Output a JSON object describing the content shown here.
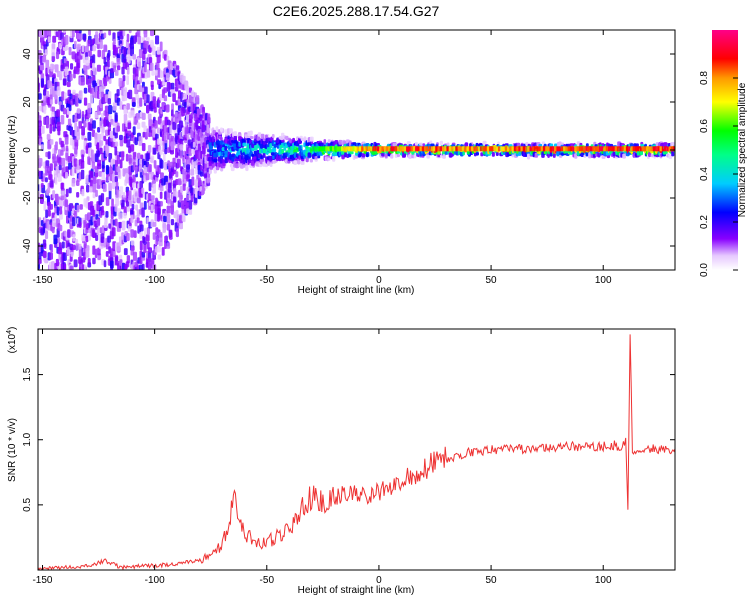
{
  "title": "C2E6.2025.288.17.54.G27",
  "colorbar": {
    "label": "Normalized spectral amplitude",
    "ticks": [
      "0.0",
      "0.2",
      "0.4",
      "0.6",
      "0.8"
    ],
    "tick_values": [
      0.0,
      0.2,
      0.4,
      0.6,
      0.8
    ],
    "range": [
      0,
      1
    ]
  },
  "chart_data": [
    {
      "type": "heatmap",
      "title": "C2E6.2025.288.17.54.G27",
      "xlabel": "Height of straight line (km)",
      "ylabel": "Frequency (Hz)",
      "xlim": [
        -152,
        132
      ],
      "ylim": [
        -50,
        50
      ],
      "x_ticks": [
        -150,
        -100,
        -50,
        0,
        50,
        100
      ],
      "x_tick_labels": [
        "-150",
        "-100",
        "-50",
        "0",
        "50",
        "100"
      ],
      "y_ticks": [
        -40,
        -20,
        0,
        20,
        40
      ],
      "y_tick_labels": [
        "-40",
        "-20",
        "0",
        "20",
        "40"
      ],
      "description_points": [
        {
          "x_km": -150,
          "freq_spread_hz": 50,
          "peak_amplitude": 0.2
        },
        {
          "x_km": -100,
          "freq_spread_hz": 50,
          "peak_amplitude": 0.2
        },
        {
          "x_km": -75,
          "freq_spread_hz": 12,
          "peak_amplitude": 0.35
        },
        {
          "x_km": -50,
          "freq_spread_hz": 8,
          "peak_amplitude": 0.45
        },
        {
          "x_km": -25,
          "freq_spread_hz": 5,
          "peak_amplitude": 0.6
        },
        {
          "x_km": 0,
          "freq_spread_hz": 3,
          "peak_amplitude": 0.9
        },
        {
          "x_km": 50,
          "freq_spread_hz": 3,
          "peak_amplitude": 0.85
        },
        {
          "x_km": 100,
          "freq_spread_hz": 3,
          "peak_amplitude": 0.9
        },
        {
          "x_km": 130,
          "freq_spread_hz": 3,
          "peak_amplitude": 0.9
        }
      ]
    },
    {
      "type": "line",
      "xlabel": "Height of straight line (km)",
      "ylabel": "SNR (10 * v/v)",
      "y_scale_label": "(x10",
      "y_scale_exp": "4",
      "y_scale_close": ")",
      "xlim": [
        -152,
        132
      ],
      "ylim": [
        0,
        1.85
      ],
      "x_ticks": [
        -150,
        -100,
        -50,
        0,
        50,
        100
      ],
      "x_tick_labels": [
        "-150",
        "-100",
        "-50",
        "0",
        "50",
        "100"
      ],
      "y_ticks": [
        0.5,
        1.0,
        1.5
      ],
      "y_tick_labels": [
        "0.5",
        "1.0",
        "1.5"
      ],
      "series": [
        {
          "name": "SNR",
          "color": "#ee3333",
          "x": [
            -152,
            -140,
            -130,
            -122,
            -115,
            -105,
            -95,
            -85,
            -78,
            -72,
            -68,
            -64,
            -62,
            -58,
            -55,
            -50,
            -45,
            -40,
            -35,
            -30,
            -25,
            -20,
            -15,
            -10,
            -5,
            0,
            5,
            10,
            15,
            20,
            25,
            30,
            35,
            40,
            50,
            60,
            70,
            80,
            90,
            100,
            105,
            108,
            110,
            111,
            112,
            113,
            115,
            120,
            125,
            132
          ],
          "values": [
            0.01,
            0.02,
            0.03,
            0.07,
            0.02,
            0.03,
            0.04,
            0.06,
            0.09,
            0.15,
            0.3,
            0.55,
            0.35,
            0.25,
            0.2,
            0.22,
            0.25,
            0.3,
            0.45,
            0.55,
            0.5,
            0.55,
            0.6,
            0.58,
            0.56,
            0.6,
            0.62,
            0.7,
            0.72,
            0.78,
            0.82,
            0.85,
            0.88,
            0.9,
            0.92,
            0.93,
            0.93,
            0.94,
            0.95,
            0.95,
            0.96,
            0.9,
            1.0,
            0.45,
            1.85,
            0.92,
            0.93,
            0.93,
            0.93,
            0.93
          ]
        }
      ]
    }
  ]
}
